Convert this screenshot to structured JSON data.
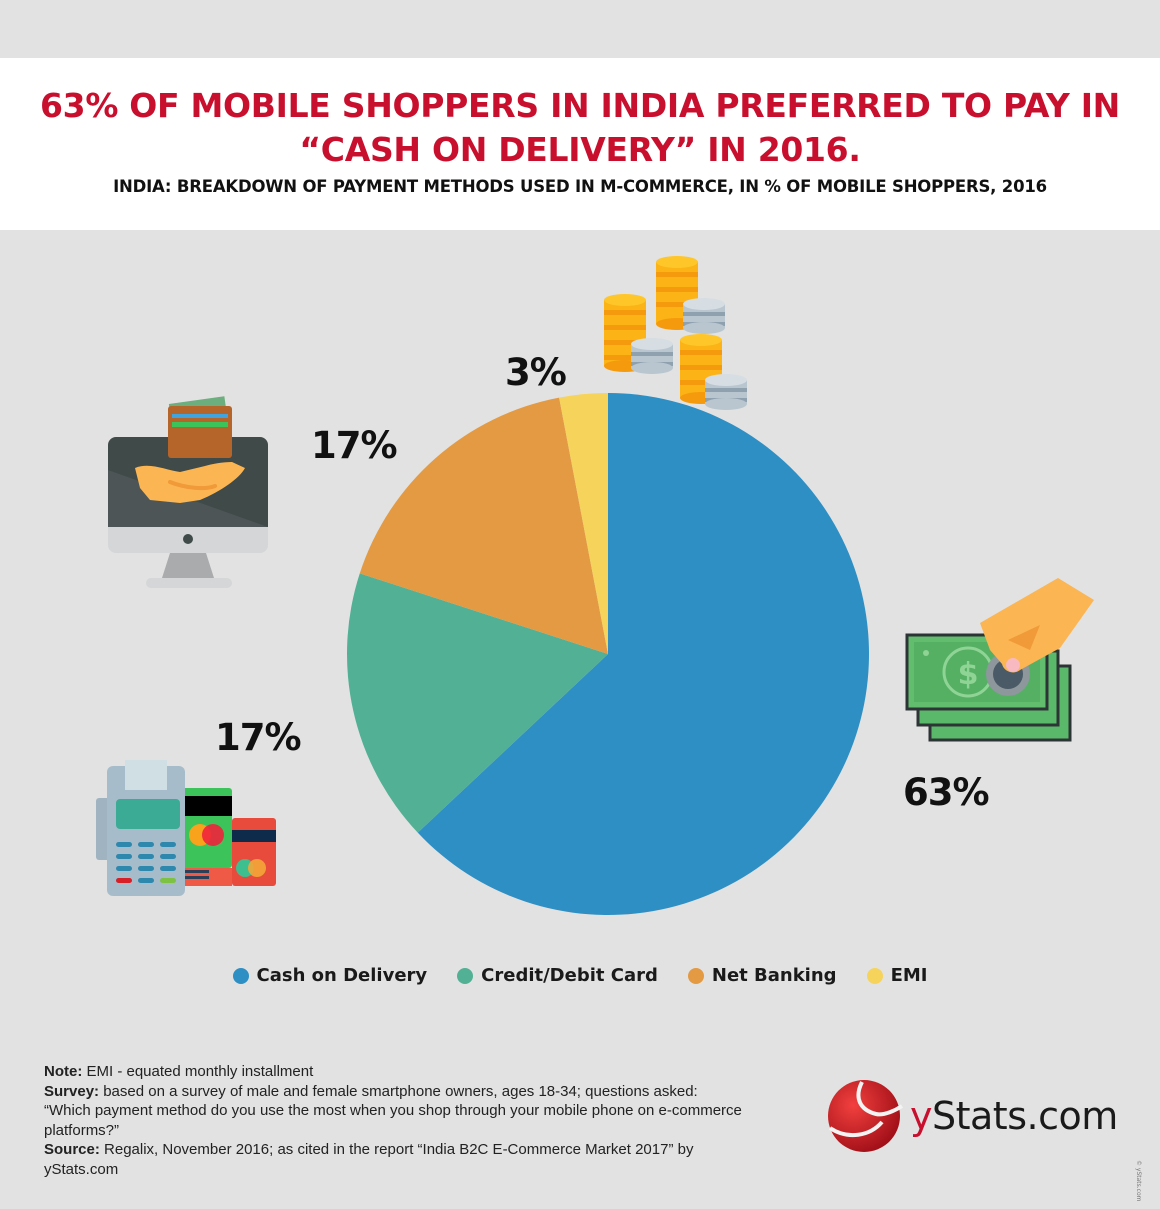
{
  "header": {
    "title_line1": "63% OF MOBILE SHOPPERS IN INDIA PREFERRED TO PAY IN",
    "title_line2": "“CASH ON DELIVERY” IN 2016.",
    "subtitle": "INDIA: BREAKDOWN OF PAYMENT METHODS USED IN M-COMMERCE, IN % OF MOBILE SHOPPERS, 2016"
  },
  "colors": {
    "title": "#c8102e",
    "cash_on_delivery": "#2e8fc4",
    "credit_debit_card": "#52b095",
    "net_banking": "#e39a43",
    "emi": "#f6d35b",
    "background": "#e2e2e2"
  },
  "labels": {
    "cash_on_delivery": "63%",
    "credit_debit_card": "17%",
    "net_banking": "17%",
    "emi": "3%"
  },
  "icons": {
    "cash_on_delivery": "hand-cash-coin-icon",
    "credit_debit_card": "card-terminal-icon",
    "net_banking": "computer-wallet-icon",
    "emi": "coin-stacks-icon"
  },
  "legend": [
    {
      "label": "Cash on Delivery",
      "color": "#2e8fc4"
    },
    {
      "label": "Credit/Debit Card",
      "color": "#52b095"
    },
    {
      "label": "Net Banking",
      "color": "#e39a43"
    },
    {
      "label": "EMI",
      "color": "#f6d35b"
    }
  ],
  "notes": {
    "note_label": "Note:",
    "note_text": " EMI - equated monthly installment",
    "survey_label": "Survey:",
    "survey_text": " based on a survey of male and female smartphone owners, ages 18-34; questions asked: “Which payment method do you use the most when you shop through your mobile phone on e-commerce platforms?”",
    "source_label": "Source:",
    "source_text": " Regalix, November 2016; as cited in the report “India B2C E-Commerce Market 2017” by yStats.com"
  },
  "logo": {
    "y": "y",
    "rest": "Stats.com"
  },
  "copyright": "© yStats.com",
  "chart_data": {
    "type": "pie",
    "title": "63% OF MOBILE SHOPPERS IN INDIA PREFERRED TO PAY IN “CASH ON DELIVERY” IN 2016.",
    "subtitle": "INDIA: BREAKDOWN OF PAYMENT METHODS USED IN M-COMMERCE, IN % OF MOBILE SHOPPERS, 2016",
    "categories": [
      "Cash on Delivery",
      "Credit/Debit Card",
      "Net Banking",
      "EMI"
    ],
    "values": [
      63,
      17,
      17,
      3
    ],
    "unit": "%",
    "colors": [
      "#2e8fc4",
      "#52b095",
      "#e39a43",
      "#f6d35b"
    ],
    "start_angle": "12 o'clock, clockwise",
    "legend_position": "bottom"
  }
}
